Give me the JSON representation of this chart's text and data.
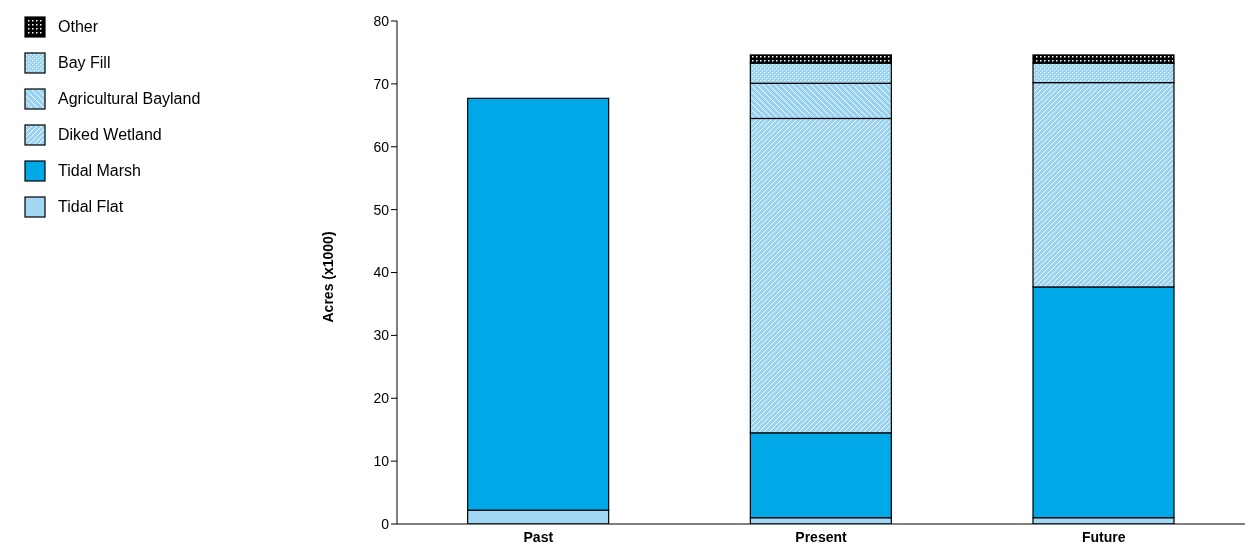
{
  "chart_data": {
    "type": "bar",
    "stacked": true,
    "ylabel": "Acres (x1000)",
    "categories": [
      "Past",
      "Present",
      "Future"
    ],
    "series": [
      {
        "name": "Tidal Flat",
        "color": "#a3d8f4",
        "values": [
          2.2,
          1.0,
          1.0
        ]
      },
      {
        "name": "Tidal Marsh",
        "color": "#00a8e8",
        "values": [
          65.5,
          13.5,
          36.7
        ]
      },
      {
        "name": "Diked Wetland",
        "color": "#99d3f3",
        "values": [
          0,
          50.0,
          32.5
        ]
      },
      {
        "name": "Agricultural Bayland",
        "color": "#99d3f3",
        "values": [
          0,
          5.6,
          0
        ]
      },
      {
        "name": "Bay Fill",
        "color": "#99d3f3",
        "values": [
          0,
          3.2,
          3.1
        ]
      },
      {
        "name": "Other",
        "color": "#000000",
        "values": [
          0,
          1.3,
          1.3
        ]
      }
    ],
    "ylim": [
      0,
      80
    ],
    "yticks": [
      0,
      10,
      20,
      30,
      40,
      50,
      60,
      70,
      80
    ],
    "grid": false,
    "legend": "top left"
  }
}
